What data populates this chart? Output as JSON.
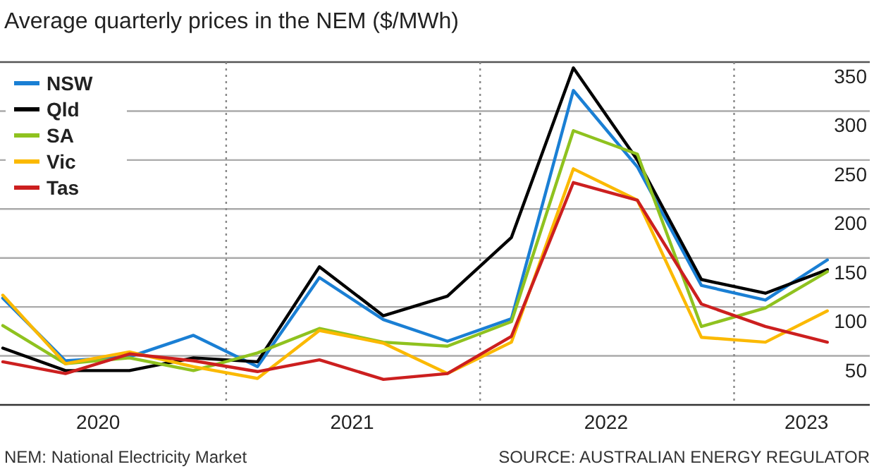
{
  "chart_data": {
    "type": "line",
    "title": "Average quarterly prices in the NEM ($/MWh)",
    "x": [
      "2020-02-15",
      "2020-05-15",
      "2020-08-15",
      "2020-11-15",
      "2021-02-15",
      "2021-05-15",
      "2021-08-15",
      "2021-11-15",
      "2022-02-15",
      "2022-05-15",
      "2022-08-15",
      "2022-11-15",
      "2023-02-15",
      "2023-05-15"
    ],
    "xlim": [
      "2020-02-15",
      "2023-07-15"
    ],
    "xticks": [
      {
        "value": "2020-07-01",
        "label": "2020"
      },
      {
        "value": "2021-07-01",
        "label": "2021"
      },
      {
        "value": "2022-07-01",
        "label": "2022"
      },
      {
        "value": "2023-04-15",
        "label": "2023"
      }
    ],
    "ylim": [
      0,
      350
    ],
    "yticks": [
      50,
      100,
      150,
      200,
      250,
      300,
      350
    ],
    "grid": "y",
    "legend": "top left",
    "marker": "none",
    "line_style": "solid",
    "series": [
      {
        "name": "NSW",
        "color": "#1a7fd4",
        "values": [
          109,
          45,
          49,
          71,
          39,
          130,
          87,
          65,
          88,
          321,
          243,
          122,
          107,
          148
        ]
      },
      {
        "name": "Qld",
        "color": "#000000",
        "values": [
          58,
          35,
          35,
          48,
          44,
          141,
          91,
          111,
          171,
          344,
          250,
          128,
          114,
          138
        ]
      },
      {
        "name": "SA",
        "color": "#8fc21f",
        "values": [
          81,
          42,
          48,
          35,
          53,
          78,
          64,
          60,
          85,
          280,
          256,
          80,
          99,
          136
        ]
      },
      {
        "name": "Vic",
        "color": "#fbb900",
        "values": [
          112,
          42,
          54,
          39,
          27,
          76,
          63,
          32,
          64,
          241,
          209,
          69,
          64,
          96
        ]
      },
      {
        "name": "Tas",
        "color": "#cc1f1f",
        "values": [
          44,
          32,
          52,
          45,
          34,
          46,
          26,
          32,
          70,
          227,
          209,
          103,
          80,
          64
        ]
      }
    ],
    "ref_lines": [
      {
        "axis": "x",
        "value": "2021-01-01",
        "color": "#888888",
        "line_style": "dotted"
      },
      {
        "axis": "x",
        "value": "2022-01-01",
        "color": "#888888",
        "line_style": "dotted"
      },
      {
        "axis": "x",
        "value": "2023-01-01",
        "color": "#888888",
        "line_style": "dotted"
      }
    ],
    "annotations": [
      "NEM: National Electricity Market",
      "SOURCE: AUSTRALIAN ENERGY REGULATOR"
    ]
  }
}
